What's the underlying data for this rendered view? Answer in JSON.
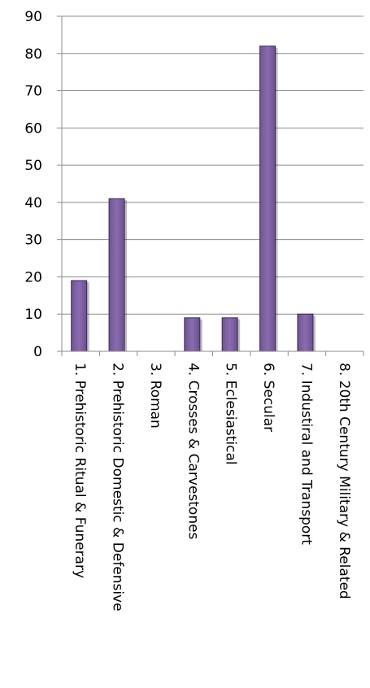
{
  "chart_data": {
    "type": "bar",
    "title": "",
    "xlabel": "",
    "ylabel": "",
    "ylim": [
      0,
      90
    ],
    "y_ticks": [
      0,
      10,
      20,
      30,
      40,
      50,
      60,
      70,
      80,
      90
    ],
    "grid": true,
    "legend": "none",
    "categories": [
      "1. Prehistoric Ritual & Funerary",
      "2. Prehistoric Domestic & Defensive",
      "3. Roman",
      "4. Crosses & Carvestones",
      "5. Eclesiastical",
      "6. Secular",
      "7. Industiral and Transport",
      "8. 20th Century Military & Related"
    ],
    "values": [
      19,
      41,
      0,
      9,
      9,
      82,
      10,
      0
    ],
    "colors": {
      "bar": "#8064a2",
      "bar_edge": "#3a2a55",
      "grid": "#8c8c8c",
      "text": "#000000"
    }
  }
}
